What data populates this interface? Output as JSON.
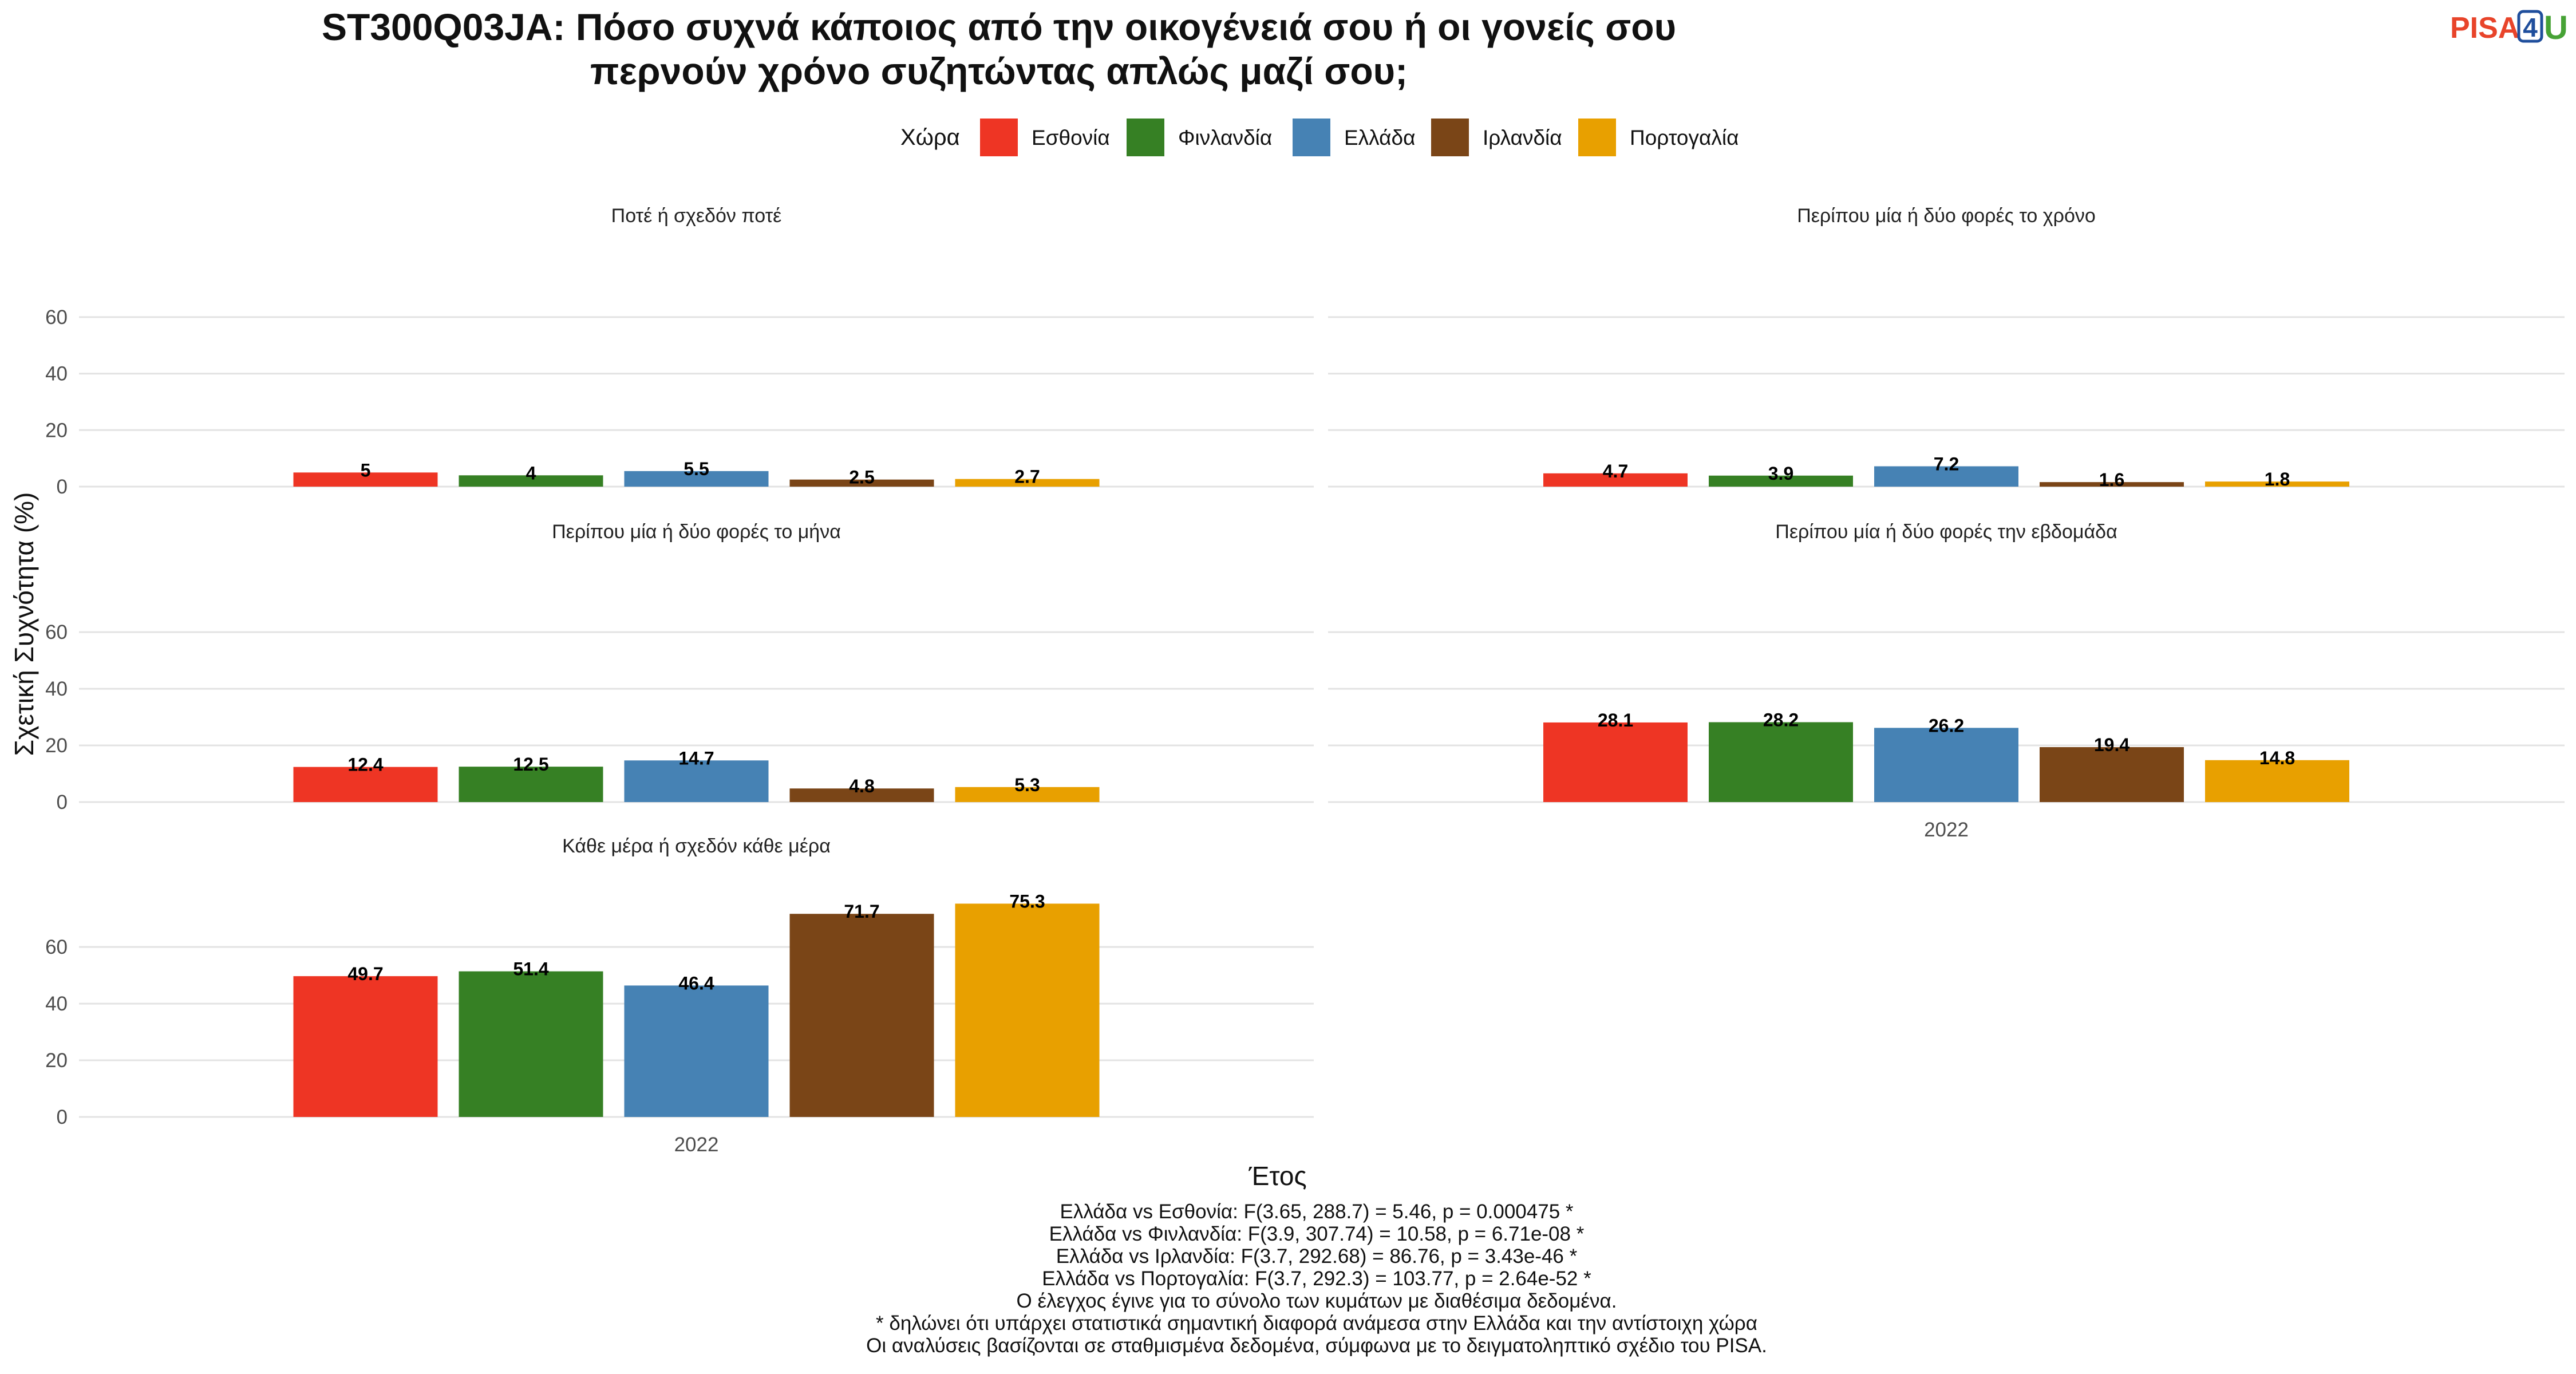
{
  "title_line1": "ST300Q03JA: Πόσο συχνά κάποιος από την οικογένειά σου ή οι γονείς σου",
  "title_line2": "περνούν χρόνο συζητώντας απλώς μαζί σου;",
  "logo": {
    "pisa": "PISA",
    "four": "4",
    "u": "U"
  },
  "legend_title": "Χώρα",
  "ylabel": "Σχετική Συχνότητα (%)",
  "xlabel": "Έτος",
  "footnotes": [
    "Ελλάδα vs Εσθονία: F(3.65, 288.7) = 5.46, p = 0.000475 *",
    "Ελλάδα vs Φινλανδία: F(3.9, 307.74) = 10.58, p = 6.71e-08 *",
    "Ελλάδα vs Ιρλανδία: F(3.7, 292.68) = 86.76, p = 3.43e-46 *",
    "Ελλάδα vs Πορτογαλία: F(3.7, 292.3) = 103.77, p = 2.64e-52 *",
    "Ο έλεγχος έγινε για το σύνολο των κυμάτων με διαθέσιμα δεδομένα.",
    "* δηλώνει ότι υπάρχει στατιστικά σημαντική διαφορά ανάμεσα στην Ελλάδα και την αντίστοιχη χώρα",
    "Οι αναλύσεις βασίζονται σε σταθμισμένα δεδομένα, σύμφωνα με το δειγματοληπτικό σχέδιο του PISA."
  ],
  "chart_data": {
    "type": "bar",
    "x": [
      "2022"
    ],
    "yticks": [
      0,
      20,
      40,
      60
    ],
    "ylim": [
      0,
      77
    ],
    "grid": true,
    "legend_placement": "top",
    "series": [
      {
        "name": "Εσθονία",
        "color": "#ee3524"
      },
      {
        "name": "Φινλανδία",
        "color": "#368024"
      },
      {
        "name": "Ελλάδα",
        "color": "#4682b4"
      },
      {
        "name": "Ιρλανδία",
        "color": "#7a4517"
      },
      {
        "name": "Πορτογαλία",
        "color": "#e8a000"
      }
    ],
    "panels": [
      {
        "title": "Ποτέ ή σχεδόν ποτέ",
        "values": [
          5,
          4,
          5.5,
          2.5,
          2.7
        ],
        "labels": [
          "5",
          "4",
          "5.5",
          "2.5",
          "2.7"
        ]
      },
      {
        "title": "Περίπου μία ή δύο φορές το χρόνο",
        "values": [
          4.7,
          3.9,
          7.2,
          1.6,
          1.8
        ],
        "labels": [
          "4.7",
          "3.9",
          "7.2",
          "1.6",
          "1.8"
        ]
      },
      {
        "title": "Περίπου μία ή δύο φορές το μήνα",
        "values": [
          12.4,
          12.5,
          14.7,
          4.8,
          5.3
        ],
        "labels": [
          "12.4",
          "12.5",
          "14.7",
          "4.8",
          "5.3"
        ]
      },
      {
        "title": "Περίπου μία ή δύο φορές την εβδομάδα",
        "values": [
          28.1,
          28.2,
          26.2,
          19.4,
          14.8
        ],
        "labels": [
          "28.1",
          "28.2",
          "26.2",
          "19.4",
          "14.8"
        ]
      },
      {
        "title": "Κάθε μέρα ή σχεδόν κάθε μέρα",
        "values": [
          49.7,
          51.4,
          46.4,
          71.7,
          75.3
        ],
        "labels": [
          "49.7",
          "51.4",
          "46.4",
          "71.7",
          "75.3"
        ]
      }
    ]
  }
}
